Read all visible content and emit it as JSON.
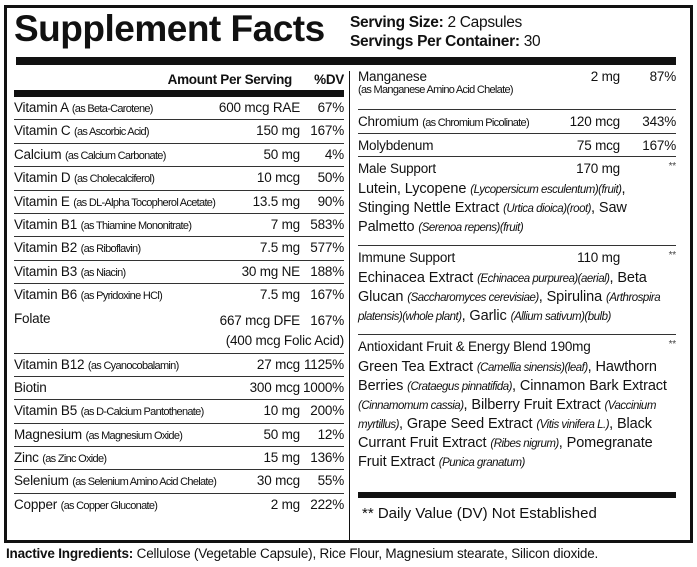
{
  "title": "Supplement Facts",
  "serving": {
    "size_label": "Serving Size:",
    "size_value": "2 Capsules",
    "per_container_label": "Servings Per Container:",
    "per_container_value": "30"
  },
  "columns": {
    "amount": "Amount Per Serving",
    "dv": "%DV"
  },
  "left_rows": [
    {
      "name": "Vitamin A",
      "source": "(as Beta-Carotene)",
      "amount": "600 mcg RAE",
      "dv": "67%"
    },
    {
      "name": "Vitamin C",
      "source": "(as Ascorbic Acid)",
      "amount": "150 mg",
      "dv": "167%"
    },
    {
      "name": "Calcium",
      "source": "(as Calcium Carbonate)",
      "amount": "50 mg",
      "dv": "4%"
    },
    {
      "name": "Vitamin D",
      "source": "(as Cholecalciferol)",
      "amount": "10 mcg",
      "dv": "50%"
    },
    {
      "name": "Vitamin E",
      "source": "(as DL-Alpha Tocopherol Acetate)",
      "amount": "13.5 mg",
      "dv": "90%"
    },
    {
      "name": "Vitamin B1",
      "source": "(as Thiamine Mononitrate)",
      "amount": "7 mg",
      "dv": "583%"
    },
    {
      "name": "Vitamin B2",
      "source": "(as Riboflavin)",
      "amount": "7.5 mg",
      "dv": "577%"
    },
    {
      "name": "Vitamin B3",
      "source": "(as Niacin)",
      "amount": "30 mg NE",
      "dv": "188%"
    },
    {
      "name": "Vitamin B6",
      "source": "(as Pyridoxine HCl)",
      "amount": "7.5 mg",
      "dv": "167%"
    }
  ],
  "folate": {
    "name": "Folate",
    "amount": "667 mcg DFE",
    "dv": "167%",
    "note": "(400 mcg Folic Acid)"
  },
  "left_rows2": [
    {
      "name": "Vitamin B12",
      "source": "(as Cyanocobalamin)",
      "amount": "27 mcg",
      "dv": "1125%"
    },
    {
      "name": "Biotin",
      "source": "",
      "amount": "300 mcg",
      "dv": "1000%"
    },
    {
      "name": "Vitamin B5",
      "source": "(as D-Calcium Pantothenate)",
      "amount": "10 mg",
      "dv": "200%"
    },
    {
      "name": "Magnesium",
      "source": "(as Magnesium Oxide)",
      "amount": "50 mg",
      "dv": "12%"
    },
    {
      "name": "Zinc",
      "source": "(as Zinc Oxide)",
      "amount": "15 mg",
      "dv": "136%"
    },
    {
      "name": "Selenium",
      "source": "(as Selenium Amino Acid Chelate)",
      "amount": "30 mcg",
      "dv": "55%"
    },
    {
      "name": "Copper",
      "source": "(as Copper Gluconate)",
      "amount": "2 mg",
      "dv": "222%"
    }
  ],
  "right_rows": [
    {
      "name": "Manganese",
      "source": "(as Manganese Amino Acid Chelate)",
      "amount": "2 mg",
      "dv": "87%"
    },
    {
      "name": "Chromium",
      "source": "(as Chromium Picolinate)",
      "amount": "120 mcg",
      "dv": "343%"
    },
    {
      "name": "Molybdenum",
      "source": "",
      "amount": "75 mcg",
      "dv": "167%"
    }
  ],
  "blends": [
    {
      "name": "Male Support",
      "amount": "170 mg",
      "dv": "**",
      "parts": [
        [
          "Lutein, Lycopene ",
          "(Lycopersicum esculentum)(fruit)",
          ", "
        ],
        [
          "Stinging Nettle Extract ",
          "(Urtica dioica)(root)",
          ", "
        ],
        [
          "Saw Palmetto ",
          "(Serenoa repens)(fruit)",
          ""
        ]
      ]
    },
    {
      "name": "Immune Support",
      "amount": "110 mg",
      "dv": "**",
      "parts": [
        [
          "Echinacea Extract ",
          "(Echinacea purpurea)(aerial)",
          ", "
        ],
        [
          "Beta Glucan ",
          "(Saccharomyces cerevisiae)",
          ", "
        ],
        [
          "Spirulina ",
          "(Arthrospira platensis)(whole plant)",
          ", "
        ],
        [
          "Garlic ",
          "(Allium sativum)(bulb)",
          ""
        ]
      ]
    },
    {
      "name": "Antioxidant Fruit & Energy Blend 190mg",
      "amount": "",
      "dv": "**",
      "parts": [
        [
          "Green Tea Extract ",
          "(Camellia sinensis)(leaf)",
          ", "
        ],
        [
          "Hawthorn Berries ",
          "(Crataegus pinnatifida)",
          ", "
        ],
        [
          "Cinnamon Bark Extract ",
          "(Cinnamomum cassia)",
          ", "
        ],
        [
          "Bilberry Fruit Extract ",
          "(Vaccinium myrtillus)",
          ", "
        ],
        [
          "Grape Seed Extract ",
          "(Vitis vinifera L.)",
          ", "
        ],
        [
          "Black Currant Fruit Extract ",
          "(Ribes nigrum)",
          ", "
        ],
        [
          "Pomegranate Fruit Extract ",
          "(Punica granatum)",
          ""
        ]
      ]
    }
  ],
  "footnote": "** Daily Value (DV) Not Established",
  "inactive": {
    "label": "Inactive Ingredients:",
    "value": " Cellulose (Vegetable Capsule), Rice Flour, Magnesium stearate, Silicon dioxide."
  }
}
